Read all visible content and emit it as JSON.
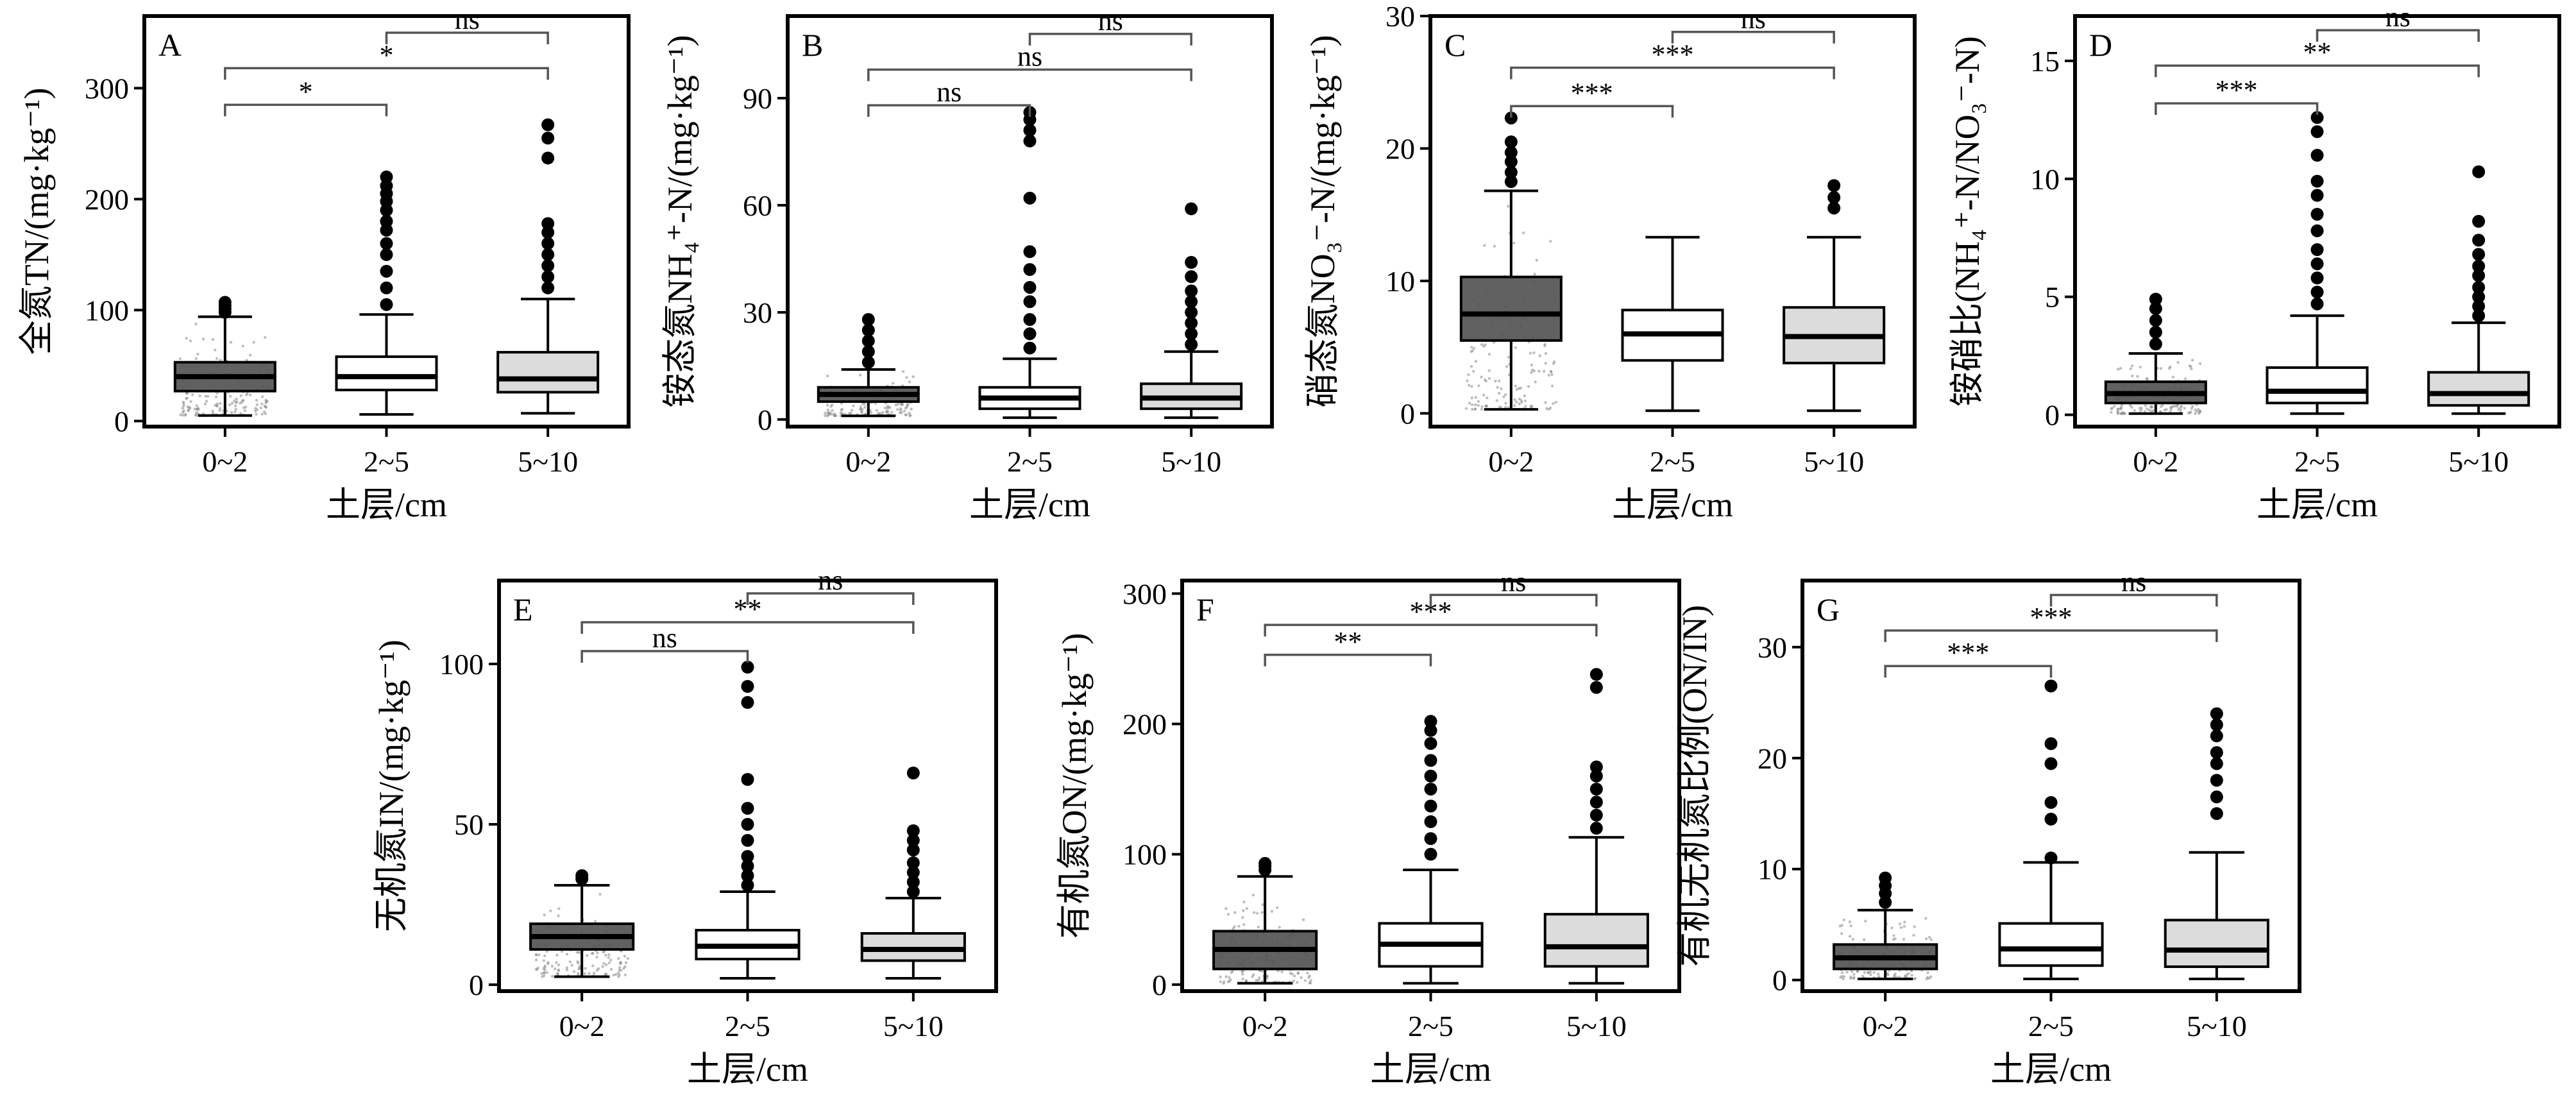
{
  "figure": {
    "x_axis_title": "土层/cm",
    "colors": {
      "layer_0_2": "#545454",
      "layer_2_5": "#ffffff",
      "layer_5_10": "#dcdcdc",
      "jitter": "#888888",
      "bracket": "#555555"
    }
  },
  "chart_data": [
    {
      "type": "box",
      "panel": "A",
      "ylabel": "全氮TN/(mg·kg⁻¹)",
      "categories": [
        "0~2",
        "2~5",
        "5~10"
      ],
      "ylim": [
        -5,
        365
      ],
      "yticks": [
        0,
        100,
        200,
        300
      ],
      "boxes": [
        {
          "q1": 27,
          "median": 40,
          "q3": 53,
          "whisker_low": 5,
          "whisker_high": 94,
          "outliers": [
            98,
            101,
            104,
            107
          ]
        },
        {
          "q1": 28,
          "median": 40,
          "q3": 58,
          "whisker_low": 6,
          "whisker_high": 96,
          "outliers": [
            105,
            120,
            135,
            150,
            160,
            172,
            180,
            190,
            198,
            205,
            212,
            220
          ]
        },
        {
          "q1": 26,
          "median": 38,
          "q3": 62,
          "whisker_low": 7,
          "whisker_high": 110,
          "outliers": [
            120,
            130,
            140,
            150,
            160,
            170,
            178,
            237,
            255,
            267
          ]
        }
      ],
      "comparisons": [
        {
          "from": 0,
          "to": 1,
          "label": "*",
          "y": 285
        },
        {
          "from": 0,
          "to": 2,
          "label": "*",
          "y": 318
        },
        {
          "from": 1,
          "to": 2,
          "label": "ns",
          "y": 350
        }
      ]
    },
    {
      "type": "box",
      "panel": "B",
      "ylabel": "铵态氮NH₄⁺-N/(mg·kg⁻¹)",
      "categories": [
        "0~2",
        "2~5",
        "5~10"
      ],
      "ylim": [
        -2,
        113
      ],
      "yticks": [
        0,
        30,
        60,
        90
      ],
      "boxes": [
        {
          "q1": 5,
          "median": 7,
          "q3": 9,
          "whisker_low": 1,
          "whisker_high": 14,
          "outliers": [
            16,
            19,
            22,
            25,
            28
          ]
        },
        {
          "q1": 3,
          "median": 6,
          "q3": 9,
          "whisker_low": 0.5,
          "whisker_high": 17,
          "outliers": [
            20,
            24,
            28,
            33,
            37,
            42,
            47,
            62,
            78,
            81,
            84,
            86
          ]
        },
        {
          "q1": 3,
          "median": 6,
          "q3": 10,
          "whisker_low": 0.5,
          "whisker_high": 19,
          "outliers": [
            21,
            24,
            27,
            30,
            33,
            36,
            40,
            44,
            59
          ]
        }
      ],
      "comparisons": [
        {
          "from": 0,
          "to": 1,
          "label": "ns",
          "y": 88
        },
        {
          "from": 0,
          "to": 2,
          "label": "ns",
          "y": 98
        },
        {
          "from": 1,
          "to": 2,
          "label": "ns",
          "y": 108
        }
      ]
    },
    {
      "type": "box",
      "panel": "C",
      "ylabel": "硝态氮NO₃⁻-N/(mg·kg⁻¹)",
      "categories": [
        "0~2",
        "2~5",
        "5~10"
      ],
      "ylim": [
        -1,
        30
      ],
      "yticks": [
        0,
        10,
        20,
        30
      ],
      "boxes": [
        {
          "q1": 5.5,
          "median": 7.5,
          "q3": 10.3,
          "whisker_low": 0.3,
          "whisker_high": 16.8,
          "outliers": [
            17.5,
            18.2,
            19.0,
            19.7,
            20.5,
            22.3
          ]
        },
        {
          "q1": 4,
          "median": 6,
          "q3": 7.8,
          "whisker_low": 0.2,
          "whisker_high": 13.3,
          "outliers": []
        },
        {
          "q1": 3.8,
          "median": 5.8,
          "q3": 8,
          "whisker_low": 0.2,
          "whisker_high": 13.3,
          "outliers": [
            15.5,
            16.3,
            17.2
          ]
        }
      ],
      "comparisons": [
        {
          "from": 0,
          "to": 1,
          "label": "***",
          "y": 23.2
        },
        {
          "from": 0,
          "to": 2,
          "label": "***",
          "y": 26.1
        },
        {
          "from": 1,
          "to": 2,
          "label": "ns",
          "y": 28.8
        }
      ]
    },
    {
      "type": "box",
      "panel": "D",
      "ylabel": "铵硝比(NH₄⁺-N/NO₃⁻-N)",
      "categories": [
        "0~2",
        "2~5",
        "5~10"
      ],
      "ylim": [
        -0.5,
        16.9
      ],
      "yticks": [
        0,
        5,
        10,
        15
      ],
      "boxes": [
        {
          "q1": 0.5,
          "median": 0.9,
          "q3": 1.4,
          "whisker_low": 0.05,
          "whisker_high": 2.6,
          "outliers": [
            3.0,
            3.5,
            4.0,
            4.5,
            4.9
          ]
        },
        {
          "q1": 0.5,
          "median": 1.0,
          "q3": 2.0,
          "whisker_low": 0.05,
          "whisker_high": 4.2,
          "outliers": [
            4.7,
            5.2,
            5.8,
            6.4,
            7.0,
            7.8,
            8.5,
            9.3,
            9.9,
            11.0,
            12.0,
            12.6
          ]
        },
        {
          "q1": 0.4,
          "median": 0.9,
          "q3": 1.8,
          "whisker_low": 0.05,
          "whisker_high": 3.9,
          "outliers": [
            4.2,
            4.6,
            5.0,
            5.4,
            5.9,
            6.3,
            6.8,
            7.4,
            8.2,
            10.3
          ]
        }
      ],
      "comparisons": [
        {
          "from": 0,
          "to": 1,
          "label": "***",
          "y": 13.2
        },
        {
          "from": 0,
          "to": 2,
          "label": "**",
          "y": 14.8
        },
        {
          "from": 1,
          "to": 2,
          "label": "ns",
          "y": 16.3
        }
      ]
    },
    {
      "type": "box",
      "panel": "E",
      "ylabel": "无机氮IN/(mg·kg⁻¹)",
      "categories": [
        "0~2",
        "2~5",
        "5~10"
      ],
      "ylim": [
        -2,
        126
      ],
      "yticks": [
        0,
        50,
        100
      ],
      "boxes": [
        {
          "q1": 11,
          "median": 15,
          "q3": 19,
          "whisker_low": 2.5,
          "whisker_high": 31,
          "outliers": [
            33,
            34
          ]
        },
        {
          "q1": 8,
          "median": 12,
          "q3": 17,
          "whisker_low": 2,
          "whisker_high": 29,
          "outliers": [
            31,
            34,
            37,
            40,
            45,
            50,
            55,
            64,
            88,
            93,
            99
          ]
        },
        {
          "q1": 7.5,
          "median": 11,
          "q3": 16,
          "whisker_low": 2,
          "whisker_high": 27,
          "outliers": [
            29,
            32,
            35,
            38,
            42,
            45,
            48,
            66
          ]
        }
      ],
      "comparisons": [
        {
          "from": 0,
          "to": 1,
          "label": "ns",
          "y": 104
        },
        {
          "from": 0,
          "to": 2,
          "label": "**",
          "y": 113
        },
        {
          "from": 1,
          "to": 2,
          "label": "ns",
          "y": 122
        }
      ]
    },
    {
      "type": "box",
      "panel": "F",
      "ylabel": "有机氮ON/(mg·kg⁻¹)",
      "categories": [
        "0~2",
        "2~5",
        "5~10"
      ],
      "ylim": [
        -5,
        310
      ],
      "yticks": [
        0,
        100,
        200,
        300
      ],
      "boxes": [
        {
          "q1": 12,
          "median": 27,
          "q3": 41,
          "whisker_low": 1,
          "whisker_high": 83,
          "outliers": [
            88,
            91,
            93
          ]
        },
        {
          "q1": 14,
          "median": 31,
          "q3": 47,
          "whisker_low": 1,
          "whisker_high": 88,
          "outliers": [
            100,
            112,
            125,
            137,
            150,
            160,
            172,
            185,
            195,
            202
          ]
        },
        {
          "q1": 14,
          "median": 29,
          "q3": 54,
          "whisker_low": 1,
          "whisker_high": 113,
          "outliers": [
            120,
            130,
            140,
            150,
            160,
            167,
            228,
            238
          ]
        }
      ],
      "comparisons": [
        {
          "from": 0,
          "to": 1,
          "label": "**",
          "y": 253
        },
        {
          "from": 0,
          "to": 2,
          "label": "***",
          "y": 276
        },
        {
          "from": 1,
          "to": 2,
          "label": "ns",
          "y": 299
        }
      ]
    },
    {
      "type": "box",
      "panel": "G",
      "ylabel": "有机无机氮比例(ON/IN)",
      "categories": [
        "0~2",
        "2~5",
        "5~10"
      ],
      "ylim": [
        -1,
        36
      ],
      "yticks": [
        0,
        10,
        20,
        30
      ],
      "boxes": [
        {
          "q1": 1.0,
          "median": 2.0,
          "q3": 3.2,
          "whisker_low": 0.1,
          "whisker_high": 6.3,
          "outliers": [
            7.0,
            7.8,
            8.5,
            9.2
          ]
        },
        {
          "q1": 1.3,
          "median": 2.8,
          "q3": 5.1,
          "whisker_low": 0.1,
          "whisker_high": 10.6,
          "outliers": [
            11.0,
            14.5,
            16.0,
            19.5,
            21.3,
            26.5
          ]
        },
        {
          "q1": 1.2,
          "median": 2.7,
          "q3": 5.4,
          "whisker_low": 0.1,
          "whisker_high": 11.5,
          "outliers": [
            15.0,
            16.5,
            18.0,
            19.5,
            20.5,
            22.0,
            23.0,
            24.0
          ]
        }
      ],
      "comparisons": [
        {
          "from": 0,
          "to": 1,
          "label": "***",
          "y": 28.3
        },
        {
          "from": 0,
          "to": 2,
          "label": "***",
          "y": 31.5
        },
        {
          "from": 1,
          "to": 2,
          "label": "ns",
          "y": 34.7
        }
      ]
    }
  ]
}
